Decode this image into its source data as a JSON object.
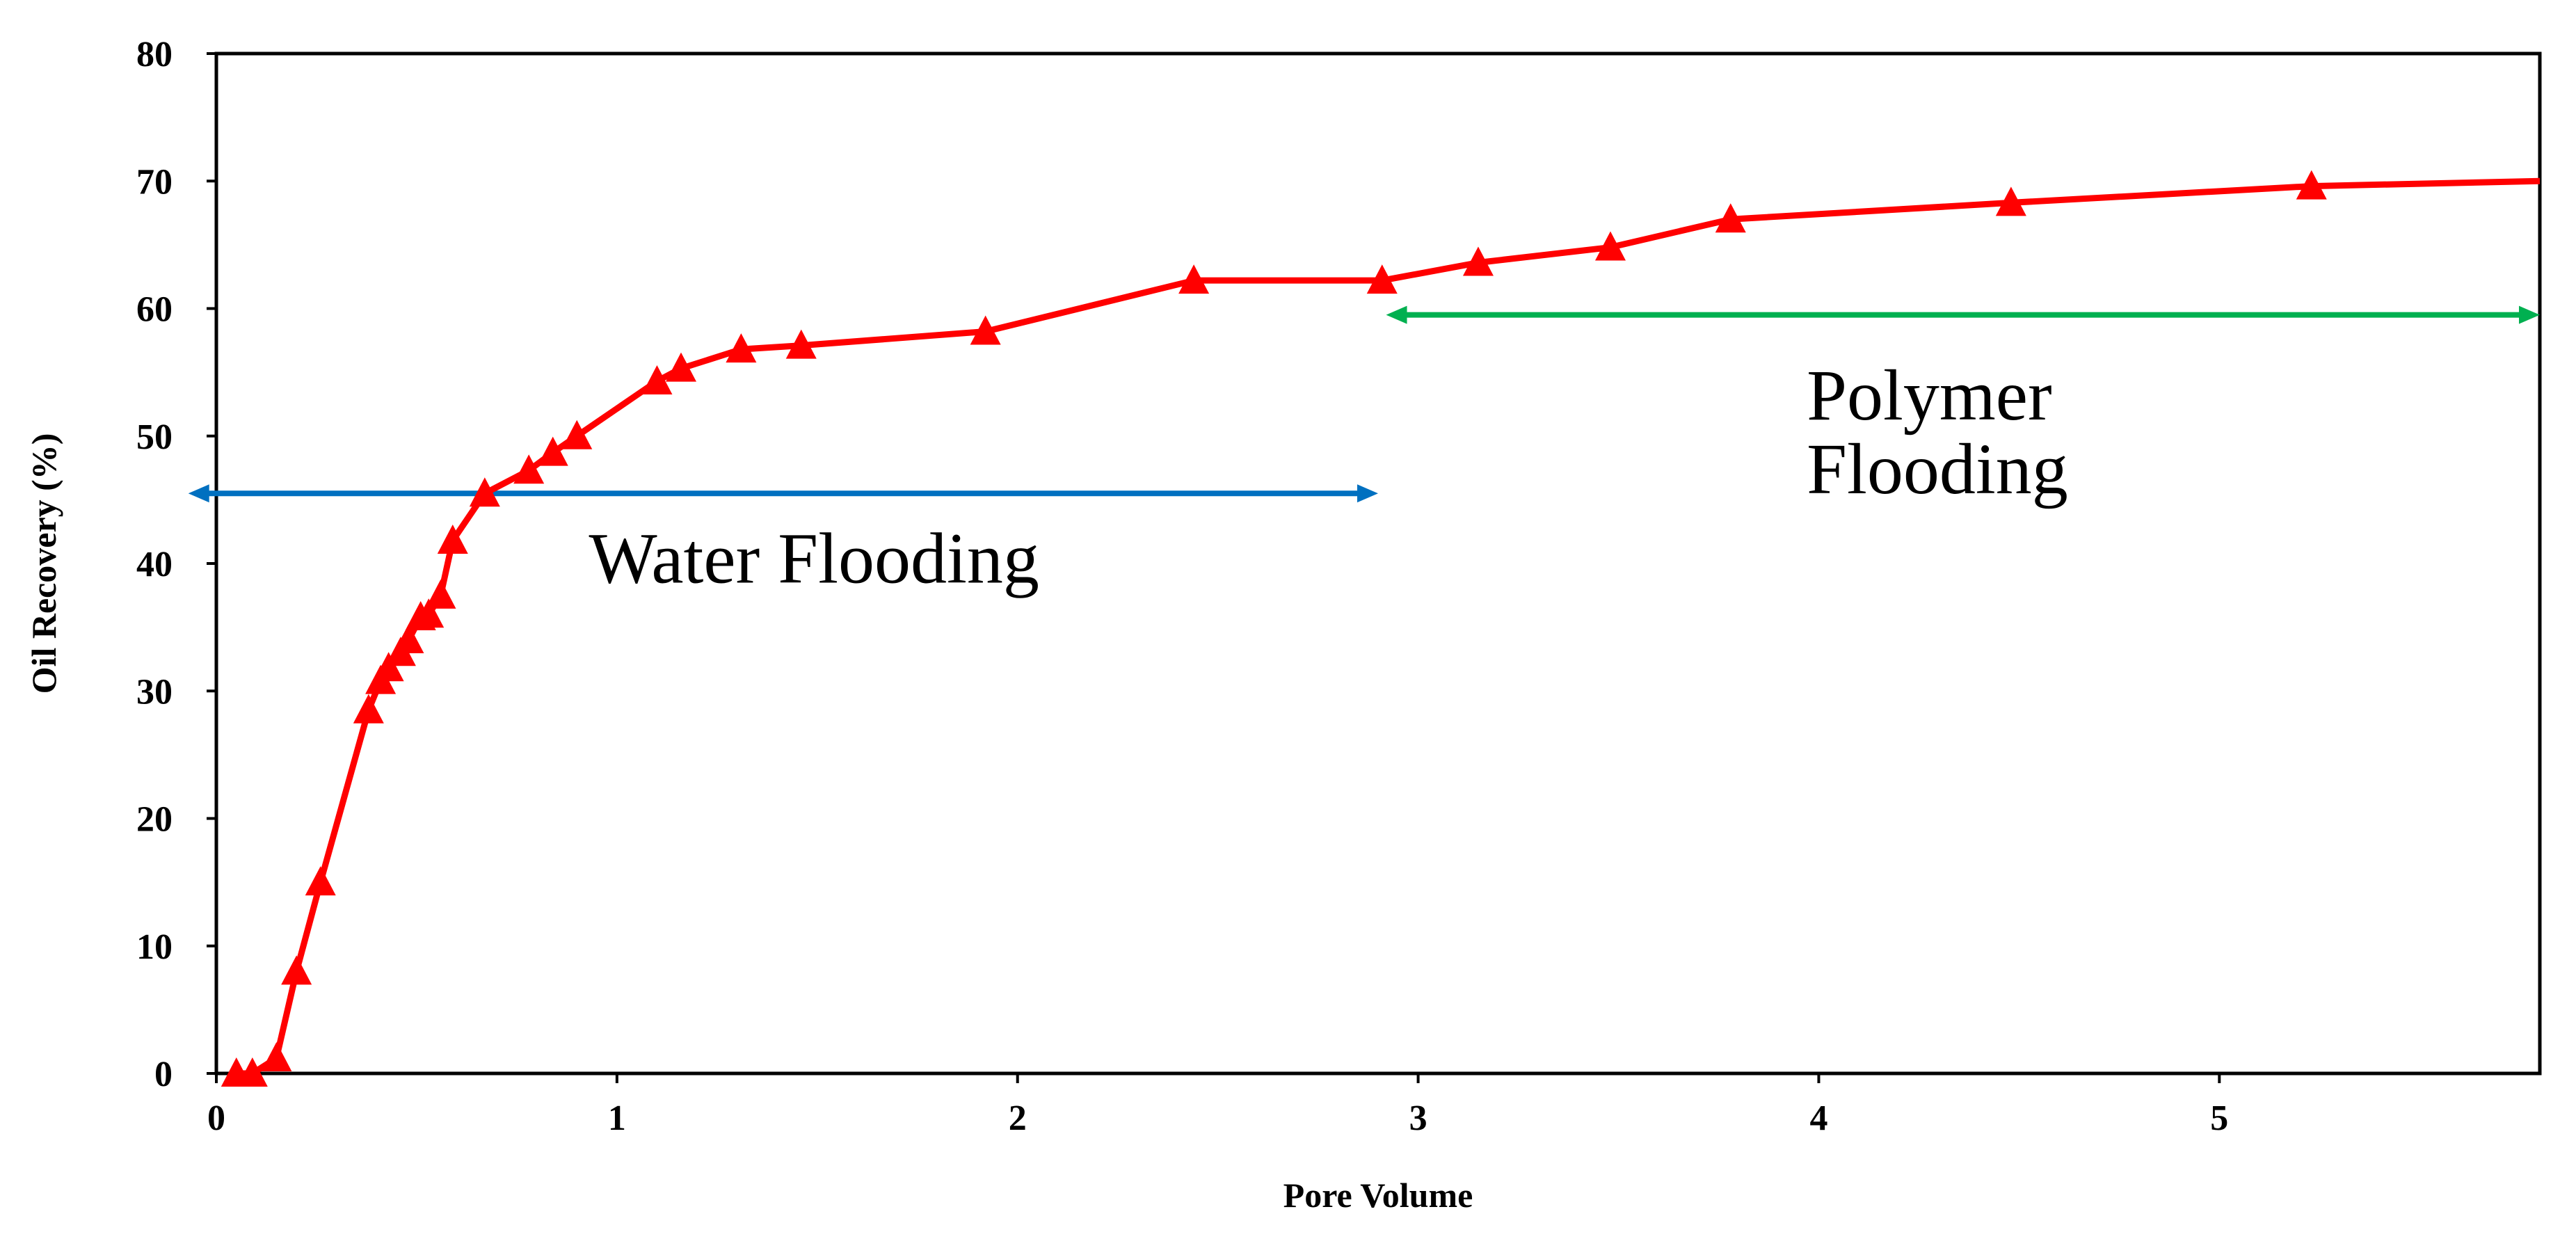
{
  "chart_data": {
    "type": "line",
    "title": "",
    "xlabel": "Pore Volume",
    "ylabel": "Oil Recovery (%)",
    "xlim": [
      0,
      5.8
    ],
    "ylim": [
      0,
      80
    ],
    "x_ticks": [
      "0",
      "1",
      "2",
      "3",
      "4",
      "5"
    ],
    "y_ticks": [
      "0",
      "10",
      "20",
      "30",
      "40",
      "50",
      "60",
      "70",
      "80"
    ],
    "grid": false,
    "legend": "none",
    "series": [
      {
        "name": "Oil Recovery",
        "color": "#ff0000",
        "marker": "triangle",
        "x": [
          0.05,
          0.09,
          0.15,
          0.2,
          0.26,
          0.38,
          0.41,
          0.43,
          0.46,
          0.48,
          0.51,
          0.53,
          0.56,
          0.59,
          0.67,
          0.78,
          0.84,
          0.9,
          1.1,
          1.16,
          1.31,
          1.46,
          1.92,
          2.44,
          2.91,
          3.15,
          3.48,
          3.78,
          4.48,
          5.23,
          5.8
        ],
        "y": [
          0.0,
          0.0,
          1.2,
          8.0,
          15.0,
          28.5,
          30.8,
          31.8,
          33.0,
          34.0,
          35.8,
          36.0,
          37.5,
          41.8,
          45.5,
          47.3,
          48.7,
          50.0,
          54.3,
          55.3,
          56.8,
          57.1,
          58.2,
          62.2,
          62.2,
          63.6,
          64.8,
          67.0,
          68.3,
          69.6,
          70.0
        ]
      }
    ],
    "annotations": [
      {
        "label": "water-flooding",
        "lines": [
          "Water Flooding"
        ],
        "arrow_x": [
          -0.07,
          2.9
        ],
        "arrow_y": 45.5,
        "arrow_color": "#0070c0",
        "text_x": 0.93,
        "text_y": 38.5
      },
      {
        "label": "polymer-flooding",
        "lines": [
          "Polymer",
          "Flooding"
        ],
        "arrow_x": [
          2.92,
          5.8
        ],
        "arrow_y": 59.5,
        "arrow_color": "#00b050",
        "text_x": 3.97,
        "text_y": 51.3,
        "text_y2": 45.5
      }
    ]
  }
}
